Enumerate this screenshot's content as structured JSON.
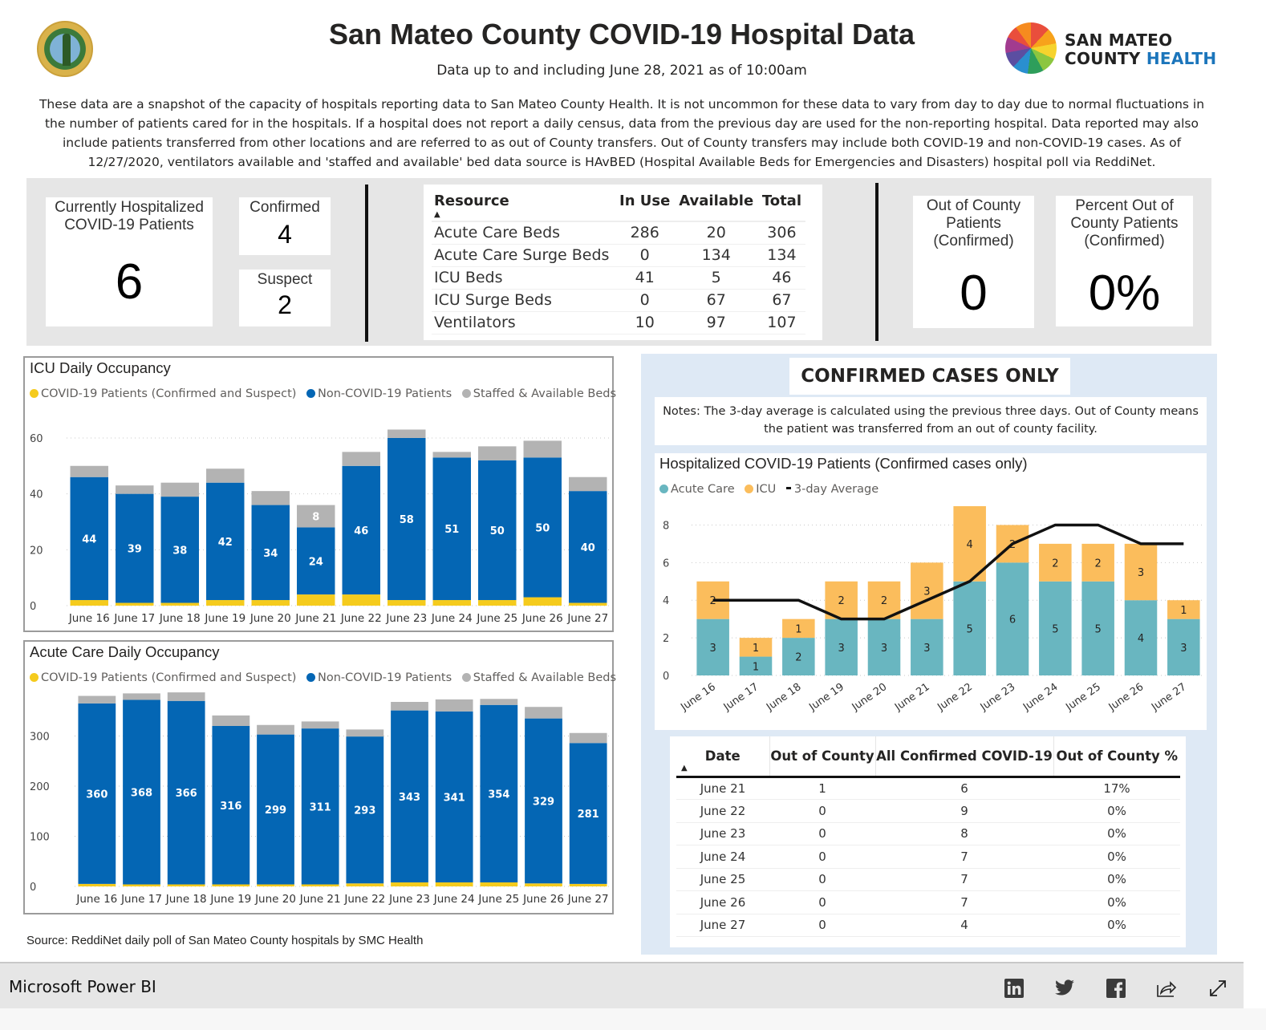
{
  "header": {
    "title": "San Mateo County COVID-19 Hospital Data",
    "subtitle": "Data up to and including June 28, 2021 as of 10:00am",
    "logo_line1": "SAN MATEO",
    "logo_line2a": "COUNTY ",
    "logo_line2b": "HEALTH",
    "description": "These data are a snapshot of the capacity of hospitals reporting data to San Mateo County Health. It is not uncommon for these data to vary from day to day due to normal fluctuations in the number of patients cared for in the hospitals. If a hospital does not report a daily census, data from the previous day are used for the non-reporting hospital. Data reported may also include patients transferred from other locations and are referred to as out of County transfers.  Out of County transfers may include both COVID-19 and non-COVID-19 cases. As of 12/27/2020, ventilators available and 'staffed and available' bed data source is HAvBED (Hospital Available Beds for Emergencies and Disasters) hospital poll via ReddiNet."
  },
  "kpis": {
    "hospitalized": {
      "label": "Currently Hospitalized COVID-19 Patients",
      "value": "6"
    },
    "confirmed": {
      "label": "Confirmed",
      "value": "4"
    },
    "suspect": {
      "label": "Suspect",
      "value": "2"
    },
    "out_of_county": {
      "label": "Out of County Patients (Confirmed)",
      "value": "0"
    },
    "percent_out_of_county": {
      "label": "Percent Out of County Patients (Confirmed)",
      "value": "0%"
    }
  },
  "resources": {
    "columns": [
      "Resource",
      "In Use",
      "Available",
      "Total"
    ],
    "sort_indicator": "▲",
    "rows": [
      [
        "Acute Care Beds",
        "286",
        "20",
        "306"
      ],
      [
        "Acute Care Surge Beds",
        "0",
        "134",
        "134"
      ],
      [
        "ICU Beds",
        "41",
        "5",
        "46"
      ],
      [
        "ICU Surge Beds",
        "0",
        "67",
        "67"
      ],
      [
        "Ventilators",
        "10",
        "97",
        "107"
      ]
    ]
  },
  "colors": {
    "covid": "#f5cb1d",
    "non_covid": "#0466b4",
    "staffed_available": "#b3b3b3",
    "acute_care": "#69b6c0",
    "icu": "#fbbd5c",
    "avg_line": "#111111",
    "panel_blue": "#dee9f5"
  },
  "chart_data": [
    {
      "id": "icu",
      "type": "bar",
      "stacked": true,
      "title": "ICU Daily Occupancy",
      "categories": [
        "June 16",
        "June 17",
        "June 18",
        "June 19",
        "June 20",
        "June 21",
        "June 22",
        "June 23",
        "June 24",
        "June 25",
        "June 26",
        "June 27"
      ],
      "series": [
        {
          "name": "COVID-19 Patients (Confirmed and Suspect)",
          "color_key": "covid",
          "values": [
            2,
            1,
            1,
            2,
            2,
            4,
            4,
            2,
            2,
            2,
            3,
            1
          ]
        },
        {
          "name": "Non-COVID-19 Patients",
          "color_key": "non_covid",
          "values": [
            44,
            39,
            38,
            42,
            34,
            24,
            46,
            58,
            51,
            50,
            50,
            40
          ],
          "labeled": true
        },
        {
          "name": "Staffed & Available Beds",
          "color_key": "staffed_available",
          "values": [
            4,
            3,
            5,
            5,
            5,
            8,
            5,
            3,
            2,
            5,
            6,
            5
          ],
          "labels": [
            null,
            null,
            null,
            null,
            null,
            "8",
            null,
            null,
            null,
            null,
            null,
            null
          ]
        }
      ],
      "yticks": [
        0,
        20,
        40,
        60
      ],
      "ylim": [
        0,
        64
      ],
      "grid": true,
      "legend": "top-left"
    },
    {
      "id": "acute",
      "type": "bar",
      "stacked": true,
      "title": "Acute Care Daily Occupancy",
      "categories": [
        "June 16",
        "June 17",
        "June 18",
        "June 19",
        "June 20",
        "June 21",
        "June 22",
        "June 23",
        "June 24",
        "June 25",
        "June 26",
        "June 27"
      ],
      "series": [
        {
          "name": "COVID-19 Patients (Confirmed and Suspect)",
          "color_key": "covid",
          "values": [
            5,
            4,
            4,
            4,
            4,
            4,
            6,
            8,
            8,
            8,
            6,
            5
          ]
        },
        {
          "name": "Non-COVID-19 Patients",
          "color_key": "non_covid",
          "values": [
            360,
            368,
            366,
            316,
            299,
            311,
            293,
            343,
            341,
            354,
            329,
            281
          ],
          "labeled": true
        },
        {
          "name": "Staffed & Available Beds",
          "color_key": "staffed_available",
          "values": [
            15,
            13,
            17,
            21,
            19,
            14,
            14,
            17,
            24,
            12,
            23,
            20
          ]
        }
      ],
      "yticks": [
        0,
        100,
        200,
        300
      ],
      "ylim": [
        0,
        392
      ],
      "grid": true,
      "legend": "top-left"
    },
    {
      "id": "confirmed",
      "type": "bar",
      "stacked": true,
      "title": "Hospitalized COVID-19 Patients (Confirmed cases only)",
      "categories": [
        "June 16",
        "June 17",
        "June 18",
        "June 19",
        "June 20",
        "June 21",
        "June 22",
        "June 23",
        "June 24",
        "June 25",
        "June 26",
        "June 27"
      ],
      "series": [
        {
          "name": "Acute Care",
          "color_key": "acute_care",
          "values": [
            3,
            1,
            2,
            3,
            3,
            3,
            5,
            6,
            5,
            5,
            4,
            3
          ],
          "labeled": true
        },
        {
          "name": "ICU",
          "color_key": "icu",
          "values": [
            2,
            1,
            1,
            2,
            2,
            3,
            4,
            2,
            2,
            2,
            3,
            1
          ],
          "labeled": true
        },
        {
          "name": "3-day Average",
          "color_key": "avg_line",
          "type": "line",
          "values": [
            4,
            4,
            4,
            3,
            3,
            4,
            5,
            7,
            8,
            8,
            7,
            7
          ]
        }
      ],
      "yticks": [
        0,
        2,
        4,
        6,
        8
      ],
      "ylim": [
        0,
        9
      ],
      "grid": true,
      "legend": "top-left",
      "xlabel_rotation": "diagonal"
    }
  ],
  "confirmed_panel": {
    "heading": "CONFIRMED CASES ONLY",
    "notes": "Notes: The 3-day average is calculated using the previous three days. Out of County means the patient was transferred from an out of county facility."
  },
  "out_of_county_table": {
    "columns": [
      "Date",
      "Out of County",
      "All Confirmed COVID-19",
      "Out of County %"
    ],
    "sort_indicator": "▲",
    "rows": [
      [
        "June 21",
        "1",
        "6",
        "17%"
      ],
      [
        "June 22",
        "0",
        "9",
        "0%"
      ],
      [
        "June 23",
        "0",
        "8",
        "0%"
      ],
      [
        "June 24",
        "0",
        "7",
        "0%"
      ],
      [
        "June 25",
        "0",
        "7",
        "0%"
      ],
      [
        "June 26",
        "0",
        "7",
        "0%"
      ],
      [
        "June 27",
        "0",
        "4",
        "0%"
      ]
    ]
  },
  "source": "Source: ReddiNet daily poll of San Mateo County hospitals by SMC Health",
  "footer": {
    "brand": "Microsoft Power BI",
    "icons": [
      "linkedin-icon",
      "twitter-icon",
      "facebook-icon",
      "share-icon",
      "expand-icon"
    ]
  }
}
